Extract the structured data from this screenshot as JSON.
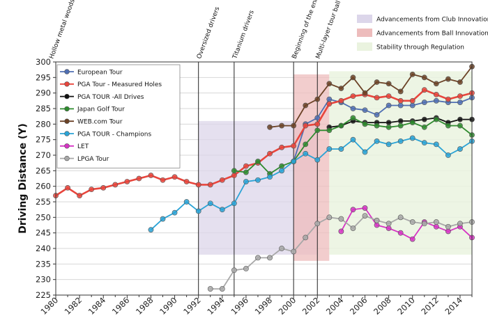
{
  "chart_data": {
    "type": "line",
    "title": "",
    "xlabel": "",
    "ylabel": "Driving Distance (Y)",
    "xlim": [
      1980,
      2015
    ],
    "ylim": [
      225,
      300
    ],
    "x_ticks": [
      1980,
      1982,
      1984,
      1986,
      1988,
      1990,
      1992,
      1994,
      1996,
      1998,
      2000,
      2002,
      2004,
      2006,
      2008,
      2010,
      2012,
      2014
    ],
    "y_ticks": [
      225,
      230,
      235,
      240,
      245,
      250,
      255,
      260,
      265,
      270,
      275,
      280,
      285,
      290,
      295,
      300
    ],
    "series": [
      {
        "name": "European Tour",
        "color": "#4f6fb3",
        "x": [
          2000,
          2001,
          2002,
          2003,
          2004,
          2005,
          2006,
          2007,
          2008,
          2009,
          2010,
          2011,
          2012,
          2013,
          2014,
          2015
        ],
        "values": [
          268,
          280,
          282,
          288,
          287,
          285,
          284.5,
          283,
          286,
          286,
          286,
          287,
          287.5,
          287,
          287,
          288.5
        ]
      },
      {
        "name": "PGA Tour - Measured Holes",
        "color": "#e8453c",
        "x": [
          1980,
          1981,
          1982,
          1983,
          1984,
          1985,
          1986,
          1987,
          1988,
          1989,
          1990,
          1991,
          1992,
          1993,
          1994,
          1995,
          1996,
          1997,
          1998,
          1999,
          2000,
          2001,
          2002,
          2003,
          2004,
          2005,
          2006,
          2007,
          2008,
          2009,
          2010,
          2011,
          2012,
          2013,
          2014,
          2015
        ],
        "values": [
          257,
          259.5,
          257,
          259,
          259.5,
          260.5,
          261.5,
          262.5,
          263.5,
          262,
          263,
          261.5,
          260.5,
          260.5,
          262,
          263.5,
          266.5,
          267.5,
          270.5,
          272.5,
          273,
          279.5,
          280,
          286.5,
          287.5,
          289,
          289.5,
          288.5,
          289,
          287.5,
          287.5,
          291,
          289.5,
          288,
          289,
          290
        ]
      },
      {
        "name": "PGA TOUR -All Drives",
        "color": "#111111",
        "x": [
          2003,
          2004,
          2005,
          2006,
          2007,
          2008,
          2009,
          2010,
          2011,
          2012,
          2013,
          2014,
          2015
        ],
        "values": [
          279,
          279.5,
          281,
          280.5,
          280.5,
          280.5,
          281,
          281,
          281.5,
          282,
          280.5,
          281.5,
          281.5
        ]
      },
      {
        "name": "Japan Golf Tour",
        "color": "#2e8b2e",
        "x": [
          1995,
          1996,
          1997,
          1998,
          1999,
          2000,
          2001,
          2002,
          2003,
          2004,
          2005,
          2006,
          2007,
          2008,
          2009,
          2010,
          2011,
          2012,
          2013,
          2014,
          2015
        ],
        "values": [
          265,
          264.5,
          268,
          264,
          266.5,
          268,
          273.5,
          278,
          278,
          279.5,
          282,
          280,
          279.5,
          279,
          279.5,
          280.5,
          279,
          281.5,
          279.5,
          279.5,
          276.5
        ]
      },
      {
        "name": "WEB.com Tour",
        "color": "#6b4226",
        "x": [
          1998,
          1999,
          2000,
          2001,
          2002,
          2003,
          2004,
          2005,
          2006,
          2007,
          2008,
          2009,
          2010,
          2011,
          2012,
          2013,
          2014,
          2015
        ],
        "values": [
          279,
          279.5,
          279.5,
          286,
          288,
          293,
          291.5,
          295,
          290,
          293.5,
          293,
          290.5,
          296,
          295,
          293,
          294.5,
          293.5,
          298.5
        ]
      },
      {
        "name": "PGA TOUR - Champions",
        "color": "#2aa3d6",
        "x": [
          1988,
          1989,
          1990,
          1991,
          1992,
          1993,
          1994,
          1995,
          1996,
          1997,
          1998,
          1999,
          2000,
          2001,
          2002,
          2003,
          2004,
          2005,
          2006,
          2007,
          2008,
          2009,
          2010,
          2011,
          2012,
          2013,
          2014,
          2015
        ],
        "values": [
          246,
          249.5,
          251.5,
          255,
          252,
          254.5,
          252.5,
          254.5,
          261.5,
          262,
          263,
          265,
          268,
          270.5,
          268.5,
          272,
          272,
          275,
          271,
          274.5,
          273.5,
          274.5,
          275.5,
          274,
          273.5,
          270,
          272,
          274.5
        ]
      },
      {
        "name": "LET",
        "color": "#d633c4",
        "x": [
          2004,
          2005,
          2006,
          2007,
          2008,
          2009,
          2010,
          2011,
          2012,
          2013,
          2014,
          2015
        ],
        "values": [
          245.5,
          252.5,
          253,
          247.5,
          246.5,
          245,
          243,
          248.5,
          247,
          245.5,
          247,
          243.5
        ]
      },
      {
        "name": "LPGA Tour",
        "color": "#a8a8a8",
        "x": [
          1993,
          1994,
          1995,
          1996,
          1997,
          1998,
          1999,
          2000,
          2001,
          2002,
          2003,
          2004,
          2005,
          2006,
          2007,
          2008,
          2009,
          2010,
          2011,
          2012,
          2013,
          2014,
          2015
        ],
        "values": [
          227,
          227,
          233,
          233.5,
          237,
          237,
          240,
          239,
          243.5,
          248,
          250,
          249.5,
          246.5,
          250.5,
          249,
          248,
          250,
          248.5,
          248,
          248.5,
          247,
          248,
          248.5
        ]
      }
    ],
    "shaded_regions": [
      {
        "name": "Advancements from Club Innovations",
        "color": "#dcd6ea",
        "x_start": 1992,
        "x_end": 2002,
        "y_top": 281
      },
      {
        "name": "Advancements from Ball Innovations",
        "color": "#edbcbc",
        "x_start": 2000,
        "x_end": 2003,
        "y_top": 296
      },
      {
        "name": "Stability through Regulation",
        "color": "#eaf3df",
        "x_start": 2003,
        "x_end": 2015,
        "y_top": 297
      }
    ],
    "annotations": [
      {
        "text": "Hollow metal woods",
        "x": 1980
      },
      {
        "text": "Oversized drivers",
        "x": 1992
      },
      {
        "text": "Titanium drivers",
        "x": 1995
      },
      {
        "text": "Beginning of the end for wound golf balls",
        "x": 2000
      },
      {
        "text": "Multi-layer tour ball takes over",
        "x": 2002
      }
    ],
    "legend_position": "top-left"
  }
}
